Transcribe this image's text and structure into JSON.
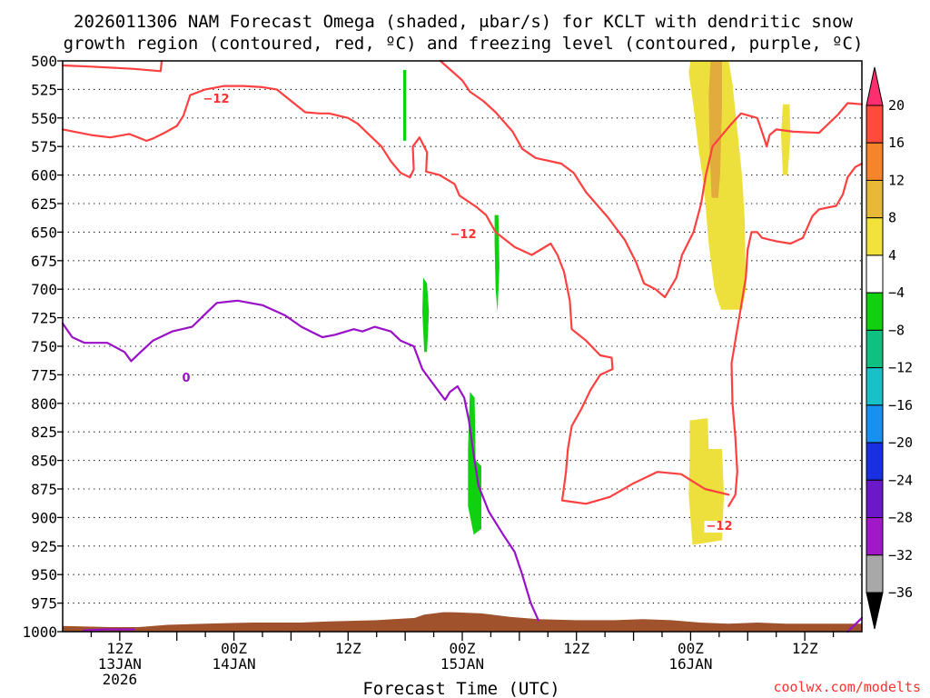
{
  "chart_data": {
    "type": "contour",
    "title": {
      "line1": "2026011306 NAM Forecast Omega (shaded, μbar/s) for KCLT with dendritic snow",
      "line2": "growth region (contoured, red, ºC) and freezing level (contoured, purple, ºC)"
    },
    "xlabel": "Forecast Time (UTC)",
    "ylabel": "",
    "credit": "coolwx.com/modelts",
    "y_axis": {
      "unit": "hPa",
      "range": [
        1000,
        500
      ],
      "ticks": [
        "500",
        "525",
        "550",
        "575",
        "600",
        "625",
        "650",
        "675",
        "700",
        "725",
        "750",
        "775",
        "800",
        "825",
        "850",
        "875",
        "900",
        "925",
        "950",
        "975",
        "1000"
      ]
    },
    "x_axis": {
      "unit": "forecast hour",
      "range": [
        0,
        84
      ],
      "ticks": [
        {
          "hour": 6,
          "line1": "12Z",
          "line2": "13JAN",
          "line3": "2026"
        },
        {
          "hour": 18,
          "line1": "00Z",
          "line2": "14JAN",
          "line3": ""
        },
        {
          "hour": 30,
          "line1": "12Z",
          "line2": "",
          "line3": ""
        },
        {
          "hour": 42,
          "line1": "00Z",
          "line2": "15JAN",
          "line3": ""
        },
        {
          "hour": 54,
          "line1": "12Z",
          "line2": "",
          "line3": ""
        },
        {
          "hour": 66,
          "line1": "00Z",
          "line2": "16JAN",
          "line3": ""
        },
        {
          "hour": 78,
          "line1": "12Z",
          "line2": "",
          "line3": ""
        }
      ]
    },
    "colorbar": {
      "labels": [
        "20",
        "16",
        "12",
        "8",
        "4",
        "−4",
        "−8",
        "−12",
        "−16",
        "−20",
        "−24",
        "−28",
        "−32",
        "−36"
      ],
      "colors": [
        "#ff2e6e",
        "#ff4b3c",
        "#f5842a",
        "#e8b838",
        "#f2e33c",
        "#ffffff",
        "#10d010",
        "#10c080",
        "#18c0c8",
        "#1890f0",
        "#1830e0",
        "#6a18c8",
        "#a018c8",
        "#a8a8a8",
        "#000000"
      ]
    },
    "contour_labels": {
      "dgz": "−12",
      "freezing": "0"
    },
    "omega_regions": [
      {
        "name": "upper-ascent",
        "value": 4,
        "color": "#eee03c",
        "points": [
          [
            66.0,
            500
          ],
          [
            70.0,
            500
          ],
          [
            70.4,
            520
          ],
          [
            70.9,
            560
          ],
          [
            71.4,
            600
          ],
          [
            71.7,
            640
          ],
          [
            71.8,
            700
          ],
          [
            71.4,
            718
          ],
          [
            69.2,
            718
          ],
          [
            68.5,
            700
          ],
          [
            67.9,
            660
          ],
          [
            67.4,
            610
          ],
          [
            66.8,
            575
          ],
          [
            66.3,
            540
          ],
          [
            65.8,
            510
          ]
        ]
      },
      {
        "name": "upper-core",
        "value": 8,
        "color": "#e2ac3c",
        "points": [
          [
            68.1,
            500
          ],
          [
            69.3,
            500
          ],
          [
            69.3,
            540
          ],
          [
            69.1,
            600
          ],
          [
            68.9,
            620
          ],
          [
            68.2,
            620
          ],
          [
            68.0,
            580
          ],
          [
            67.9,
            530
          ]
        ]
      },
      {
        "name": "upper-right",
        "value": 4,
        "color": "#eee03c",
        "points": [
          [
            75.7,
            538
          ],
          [
            76.4,
            538
          ],
          [
            76.5,
            565
          ],
          [
            76.2,
            600
          ],
          [
            75.7,
            600
          ],
          [
            75.5,
            565
          ]
        ]
      },
      {
        "name": "lower-ascent",
        "value": 4,
        "color": "#eee03c",
        "points": [
          [
            65.9,
            815
          ],
          [
            67.8,
            813
          ],
          [
            67.9,
            840
          ],
          [
            69.3,
            840
          ],
          [
            69.5,
            880
          ],
          [
            69.3,
            920
          ],
          [
            66.2,
            924
          ],
          [
            65.8,
            880
          ],
          [
            65.9,
            850
          ]
        ]
      },
      {
        "name": "subsidence-a",
        "value": -4,
        "color": "#10d010",
        "points": [
          [
            35.8,
            508
          ],
          [
            36.1,
            508
          ],
          [
            36.1,
            570
          ],
          [
            35.8,
            570
          ]
        ]
      },
      {
        "name": "subsidence-b",
        "value": -4,
        "color": "#10d010",
        "points": [
          [
            37.9,
            690
          ],
          [
            38.3,
            695
          ],
          [
            38.5,
            720
          ],
          [
            38.3,
            755
          ],
          [
            38.0,
            755
          ],
          [
            37.8,
            720
          ]
        ]
      },
      {
        "name": "subsidence-c",
        "value": -4,
        "color": "#10d010",
        "points": [
          [
            45.4,
            635
          ],
          [
            45.8,
            635
          ],
          [
            45.9,
            680
          ],
          [
            45.7,
            720
          ],
          [
            45.5,
            700
          ],
          [
            45.4,
            660
          ]
        ]
      },
      {
        "name": "subsidence-d",
        "value": -4,
        "color": "#10d010",
        "points": [
          [
            42.8,
            790
          ],
          [
            43.3,
            795
          ],
          [
            43.4,
            850
          ],
          [
            44.0,
            855
          ],
          [
            44.0,
            910
          ],
          [
            43.2,
            915
          ],
          [
            42.6,
            890
          ],
          [
            42.6,
            840
          ]
        ]
      }
    ],
    "contours": [
      {
        "name": "dgz-upper-left",
        "value": -12,
        "color": "#ff4040",
        "points": [
          [
            0,
            504
          ],
          [
            3,
            505
          ],
          [
            7.5,
            507
          ],
          [
            10.3,
            509
          ],
          [
            10.4,
            500
          ]
        ]
      },
      {
        "name": "dgz-upper-main",
        "value": -12,
        "color": "#ff4040",
        "points": [
          [
            0,
            560
          ],
          [
            3,
            565
          ],
          [
            5,
            567
          ],
          [
            7,
            564
          ],
          [
            8.8,
            570
          ],
          [
            9.5,
            568
          ],
          [
            10.7,
            563
          ],
          [
            12,
            557
          ],
          [
            12.7,
            548
          ],
          [
            13.4,
            530
          ],
          [
            15,
            525
          ],
          [
            17,
            522
          ],
          [
            19,
            522
          ],
          [
            21,
            523
          ],
          [
            22.5,
            525
          ],
          [
            24,
            535
          ],
          [
            25.5,
            545
          ],
          [
            27,
            546
          ],
          [
            28,
            546
          ],
          [
            30,
            550
          ],
          [
            31,
            555
          ],
          [
            32,
            563
          ],
          [
            33.5,
            575
          ],
          [
            34.5,
            588
          ],
          [
            35.5,
            598
          ],
          [
            36.5,
            602
          ],
          [
            36.9,
            595
          ],
          [
            36.8,
            575
          ],
          [
            37.5,
            567
          ],
          [
            38.3,
            580
          ],
          [
            38.2,
            597
          ],
          [
            39.6,
            600
          ],
          [
            41.2,
            608
          ],
          [
            41.7,
            618
          ],
          [
            43.5,
            628
          ],
          [
            44.5,
            635
          ],
          [
            45.5,
            650
          ],
          [
            47.5,
            663
          ],
          [
            49.3,
            670
          ],
          [
            51.3,
            660
          ],
          [
            52,
            670
          ],
          [
            52.7,
            685
          ],
          [
            53.3,
            710
          ],
          [
            53.5,
            735
          ],
          [
            55,
            745
          ],
          [
            56.5,
            758
          ],
          [
            57.7,
            760
          ],
          [
            57.8,
            770
          ],
          [
            56.5,
            775
          ],
          [
            55.5,
            788
          ],
          [
            54.5,
            805
          ],
          [
            53.5,
            820
          ],
          [
            53.1,
            840
          ],
          [
            52.9,
            860
          ],
          [
            52.5,
            885
          ],
          [
            55,
            888
          ],
          [
            57.5,
            882
          ],
          [
            60,
            870
          ],
          [
            62.5,
            860
          ],
          [
            65,
            862
          ],
          [
            67.5,
            875
          ],
          [
            70,
            880
          ]
        ]
      },
      {
        "name": "dgz-upper-right",
        "value": -12,
        "color": "#ff4040",
        "points": [
          [
            39.7,
            500
          ],
          [
            42.0,
            517
          ],
          [
            42.8,
            527
          ],
          [
            44.2,
            535
          ],
          [
            45.5,
            545
          ],
          [
            47.3,
            562
          ],
          [
            48.3,
            577
          ],
          [
            49.7,
            585
          ],
          [
            52.4,
            590
          ],
          [
            53.7,
            598
          ],
          [
            55.0,
            615
          ],
          [
            57.3,
            637
          ],
          [
            59.1,
            657
          ],
          [
            60.3,
            677
          ],
          [
            61.1,
            695
          ],
          [
            62.3,
            700
          ],
          [
            63.3,
            707
          ],
          [
            64.5,
            690
          ],
          [
            65.1,
            670
          ],
          [
            66.3,
            650
          ],
          [
            67.1,
            625
          ],
          [
            67.6,
            600
          ],
          [
            68.3,
            575
          ],
          [
            69.3,
            565
          ],
          [
            70.3,
            555
          ],
          [
            71.3,
            546
          ],
          [
            73.0,
            550
          ],
          [
            73.7,
            567
          ],
          [
            74.0,
            575
          ],
          [
            74.3,
            565
          ],
          [
            75.0,
            560
          ],
          [
            76.8,
            562
          ],
          [
            79.5,
            563
          ],
          [
            80.5,
            555
          ],
          [
            81.5,
            547
          ],
          [
            82.5,
            537
          ],
          [
            84.0,
            538
          ]
        ]
      },
      {
        "name": "dgz-lower-right",
        "value": -12,
        "color": "#ff4040",
        "points": [
          [
            84.0,
            590
          ],
          [
            83.3,
            593
          ],
          [
            82.5,
            602
          ],
          [
            82.0,
            617
          ],
          [
            81.3,
            627
          ],
          [
            79.5,
            630
          ],
          [
            78.8,
            636
          ],
          [
            77.8,
            655
          ],
          [
            76.5,
            660
          ],
          [
            75.0,
            658
          ],
          [
            73.5,
            655
          ],
          [
            73.0,
            650
          ],
          [
            72.4,
            650
          ],
          [
            72.0,
            665
          ],
          [
            71.8,
            690
          ],
          [
            71.3,
            715
          ],
          [
            70.8,
            740
          ],
          [
            70.3,
            765
          ],
          [
            70.4,
            800
          ],
          [
            70.7,
            830
          ],
          [
            70.9,
            860
          ],
          [
            70.7,
            880
          ],
          [
            70.0,
            890
          ]
        ]
      },
      {
        "name": "freezing-left-surface",
        "value": 0,
        "color": "#9a10c8",
        "points": [
          [
            2.2,
            999
          ],
          [
            4.5,
            998
          ],
          [
            7.5,
            998
          ]
        ]
      },
      {
        "name": "freezing-main",
        "value": 0,
        "color": "#9a10c8",
        "points": [
          [
            0,
            730
          ],
          [
            1,
            742
          ],
          [
            2.3,
            747
          ],
          [
            3.5,
            747
          ],
          [
            4.7,
            747
          ],
          [
            6.5,
            755
          ],
          [
            7.2,
            763
          ],
          [
            8.2,
            755
          ],
          [
            9.5,
            745
          ],
          [
            11.5,
            737
          ],
          [
            13.6,
            733
          ],
          [
            15.2,
            720
          ],
          [
            16.2,
            712
          ],
          [
            18.4,
            710
          ],
          [
            21,
            714
          ],
          [
            23.4,
            723
          ],
          [
            25.1,
            733
          ],
          [
            26.3,
            738
          ],
          [
            27.3,
            742
          ],
          [
            28.6,
            740
          ],
          [
            30.6,
            735
          ],
          [
            31.5,
            737
          ],
          [
            32.8,
            733
          ],
          [
            34.5,
            737
          ],
          [
            35.5,
            745
          ],
          [
            36.9,
            750
          ],
          [
            37.8,
            770
          ],
          [
            39.3,
            787
          ],
          [
            40.2,
            797
          ],
          [
            40.7,
            790
          ],
          [
            41.5,
            785
          ],
          [
            42.2,
            795
          ],
          [
            42.7,
            815
          ],
          [
            43.2,
            845
          ],
          [
            43.7,
            872
          ],
          [
            44.8,
            895
          ],
          [
            46.3,
            915
          ],
          [
            47.5,
            930
          ],
          [
            48.3,
            950
          ],
          [
            49.2,
            975
          ],
          [
            50.0,
            990
          ]
        ]
      },
      {
        "name": "freezing-right-surface",
        "value": 0,
        "color": "#9a10c8",
        "points": [
          [
            82.5,
            1000
          ],
          [
            84.0,
            988
          ]
        ]
      }
    ],
    "terrain": {
      "name": "ground",
      "color": "#a0522d",
      "points": [
        [
          0,
          1000
        ],
        [
          0,
          995
        ],
        [
          5,
          996
        ],
        [
          8,
          996
        ],
        [
          11,
          994
        ],
        [
          15,
          993
        ],
        [
          20,
          992
        ],
        [
          25,
          992
        ],
        [
          28,
          991
        ],
        [
          33,
          990
        ],
        [
          37,
          988
        ],
        [
          38,
          985
        ],
        [
          40,
          983
        ],
        [
          41,
          983
        ],
        [
          44,
          984
        ],
        [
          47,
          987
        ],
        [
          50,
          989
        ],
        [
          54,
          990
        ],
        [
          58,
          990
        ],
        [
          61,
          989
        ],
        [
          64,
          990
        ],
        [
          67,
          992
        ],
        [
          70,
          993
        ],
        [
          73,
          992
        ],
        [
          76,
          993
        ],
        [
          79,
          993
        ],
        [
          82,
          993
        ],
        [
          84,
          993
        ],
        [
          84,
          1000
        ]
      ]
    }
  }
}
